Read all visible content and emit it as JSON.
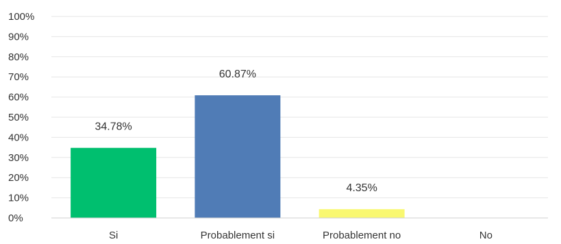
{
  "chart_data": {
    "type": "bar",
    "categories": [
      "Si",
      "Probablement si",
      "Probablement no",
      "No"
    ],
    "values": [
      34.78,
      60.87,
      4.35,
      0
    ],
    "value_labels": [
      "34.78%",
      "60.87%",
      "4.35%",
      ""
    ],
    "colors": [
      "#00bf6f",
      "#507cb6",
      "#f9f871",
      "#dddddd"
    ],
    "ylim": [
      0,
      100
    ],
    "yticks": [
      0,
      10,
      20,
      30,
      40,
      50,
      60,
      70,
      80,
      90,
      100
    ],
    "ytick_labels": [
      "0%",
      "10%",
      "20%",
      "30%",
      "40%",
      "50%",
      "60%",
      "70%",
      "80%",
      "90%",
      "100%"
    ],
    "grid": true,
    "title": "",
    "xlabel": "",
    "ylabel": ""
  }
}
